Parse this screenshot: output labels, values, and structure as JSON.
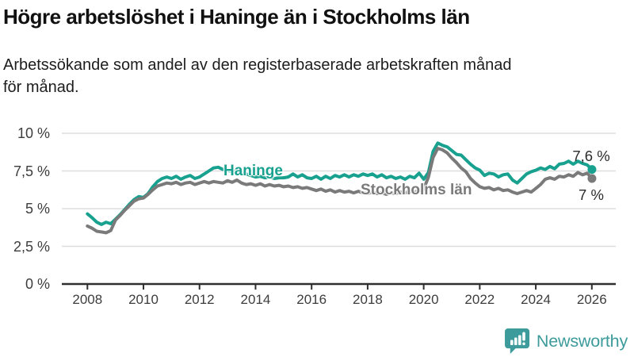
{
  "header": {
    "title": "Högre arbetslöshet i Haninge än i Stockholms län",
    "subtitle": "Arbetssökande som andel av den registerbaserade arbetskraften månad för månad."
  },
  "chart_data": {
    "type": "line",
    "title": "Högre arbetslöshet i Haninge än i Stockholms län",
    "xlabel": "",
    "ylabel": "",
    "xlim": [
      2008,
      2026
    ],
    "ylim": [
      0,
      10
    ],
    "grid": "horizontal",
    "legend_position": "inline-labels-on-lines",
    "x_ticks": [
      {
        "v": 2008,
        "label": "2008"
      },
      {
        "v": 2010,
        "label": "2010"
      },
      {
        "v": 2012,
        "label": "2012"
      },
      {
        "v": 2014,
        "label": "2014"
      },
      {
        "v": 2016,
        "label": "2016"
      },
      {
        "v": 2018,
        "label": "2018"
      },
      {
        "v": 2020,
        "label": "2020"
      },
      {
        "v": 2022,
        "label": "2022"
      },
      {
        "v": 2024,
        "label": "2024"
      },
      {
        "v": 2026,
        "label": "2026"
      }
    ],
    "y_ticks": [
      {
        "v": 0,
        "label": "0 %"
      },
      {
        "v": 2.5,
        "label": "2,5 %"
      },
      {
        "v": 5,
        "label": "5 %"
      },
      {
        "v": 7.5,
        "label": "7,5 %"
      },
      {
        "v": 10,
        "label": "10 %"
      }
    ],
    "x_start_year": 2008.0,
    "x_step_years": 0.1667,
    "series": [
      {
        "name": "Haninge",
        "color": "#19a18f",
        "end_label": "7,6 %",
        "end_value": 7.6,
        "values": [
          4.65,
          4.4,
          4.1,
          3.95,
          4.1,
          4.0,
          4.3,
          4.6,
          4.95,
          5.3,
          5.6,
          5.8,
          5.75,
          6.0,
          6.45,
          6.8,
          7.0,
          7.1,
          7.0,
          7.15,
          6.95,
          7.1,
          7.2,
          7.0,
          7.1,
          7.3,
          7.5,
          7.7,
          7.75,
          7.6,
          7.55,
          7.45,
          7.5,
          7.4,
          7.3,
          7.2,
          7.1,
          7.15,
          7.05,
          7.1,
          7.0,
          7.05,
          7.05,
          7.1,
          7.3,
          7.1,
          7.25,
          7.05,
          7.0,
          7.15,
          6.95,
          7.15,
          7.0,
          7.2,
          7.1,
          7.25,
          7.1,
          7.25,
          7.15,
          7.3,
          7.2,
          7.3,
          7.1,
          7.25,
          7.05,
          7.15,
          7.0,
          7.1,
          6.95,
          7.15,
          7.05,
          7.35,
          6.95,
          7.4,
          8.8,
          9.35,
          9.2,
          9.1,
          8.85,
          8.6,
          8.55,
          8.25,
          7.95,
          7.7,
          7.55,
          7.2,
          7.35,
          7.3,
          7.1,
          7.25,
          7.3,
          6.9,
          6.7,
          7.0,
          7.3,
          7.45,
          7.55,
          7.7,
          7.6,
          7.8,
          7.65,
          7.95,
          8.0,
          8.15,
          7.95,
          8.15,
          8.0,
          7.9,
          7.6
        ]
      },
      {
        "name": "Stockholms län",
        "color": "#7a7a7a",
        "end_label": "7 %",
        "end_value": 7.0,
        "values": [
          3.85,
          3.7,
          3.5,
          3.45,
          3.4,
          3.55,
          4.25,
          4.55,
          4.9,
          5.2,
          5.5,
          5.65,
          5.7,
          5.95,
          6.25,
          6.5,
          6.6,
          6.7,
          6.65,
          6.75,
          6.6,
          6.7,
          6.75,
          6.6,
          6.7,
          6.8,
          6.7,
          6.8,
          6.75,
          6.7,
          6.85,
          6.75,
          6.9,
          6.7,
          6.6,
          6.65,
          6.55,
          6.65,
          6.5,
          6.6,
          6.5,
          6.55,
          6.45,
          6.5,
          6.4,
          6.45,
          6.35,
          6.4,
          6.3,
          6.2,
          6.3,
          6.15,
          6.25,
          6.1,
          6.2,
          6.1,
          6.15,
          6.05,
          6.15,
          6.05,
          6.0,
          6.1,
          6.0,
          6.05,
          5.95,
          6.05,
          6.0,
          6.1,
          6.05,
          6.15,
          6.1,
          6.2,
          6.3,
          7.1,
          8.4,
          9.0,
          8.9,
          8.7,
          8.35,
          8.05,
          7.7,
          7.45,
          7.0,
          6.7,
          6.45,
          6.35,
          6.4,
          6.25,
          6.35,
          6.2,
          6.25,
          6.1,
          6.0,
          6.1,
          6.2,
          6.1,
          6.35,
          6.6,
          6.95,
          7.05,
          6.95,
          7.15,
          7.1,
          7.25,
          7.15,
          7.4,
          7.25,
          7.35,
          7.0
        ]
      }
    ],
    "colors": {
      "grid": "#dedede",
      "axis": "#2f2f2f",
      "tick_text": "#3d3d3d",
      "accent_teal": "#19a18f",
      "series_gray": "#7a7a7a"
    }
  },
  "footer": {
    "brand": "Newsworthy",
    "logo_icon": "bar-chart-speech-bubble-icon",
    "brand_color": "#3e9b9b"
  }
}
